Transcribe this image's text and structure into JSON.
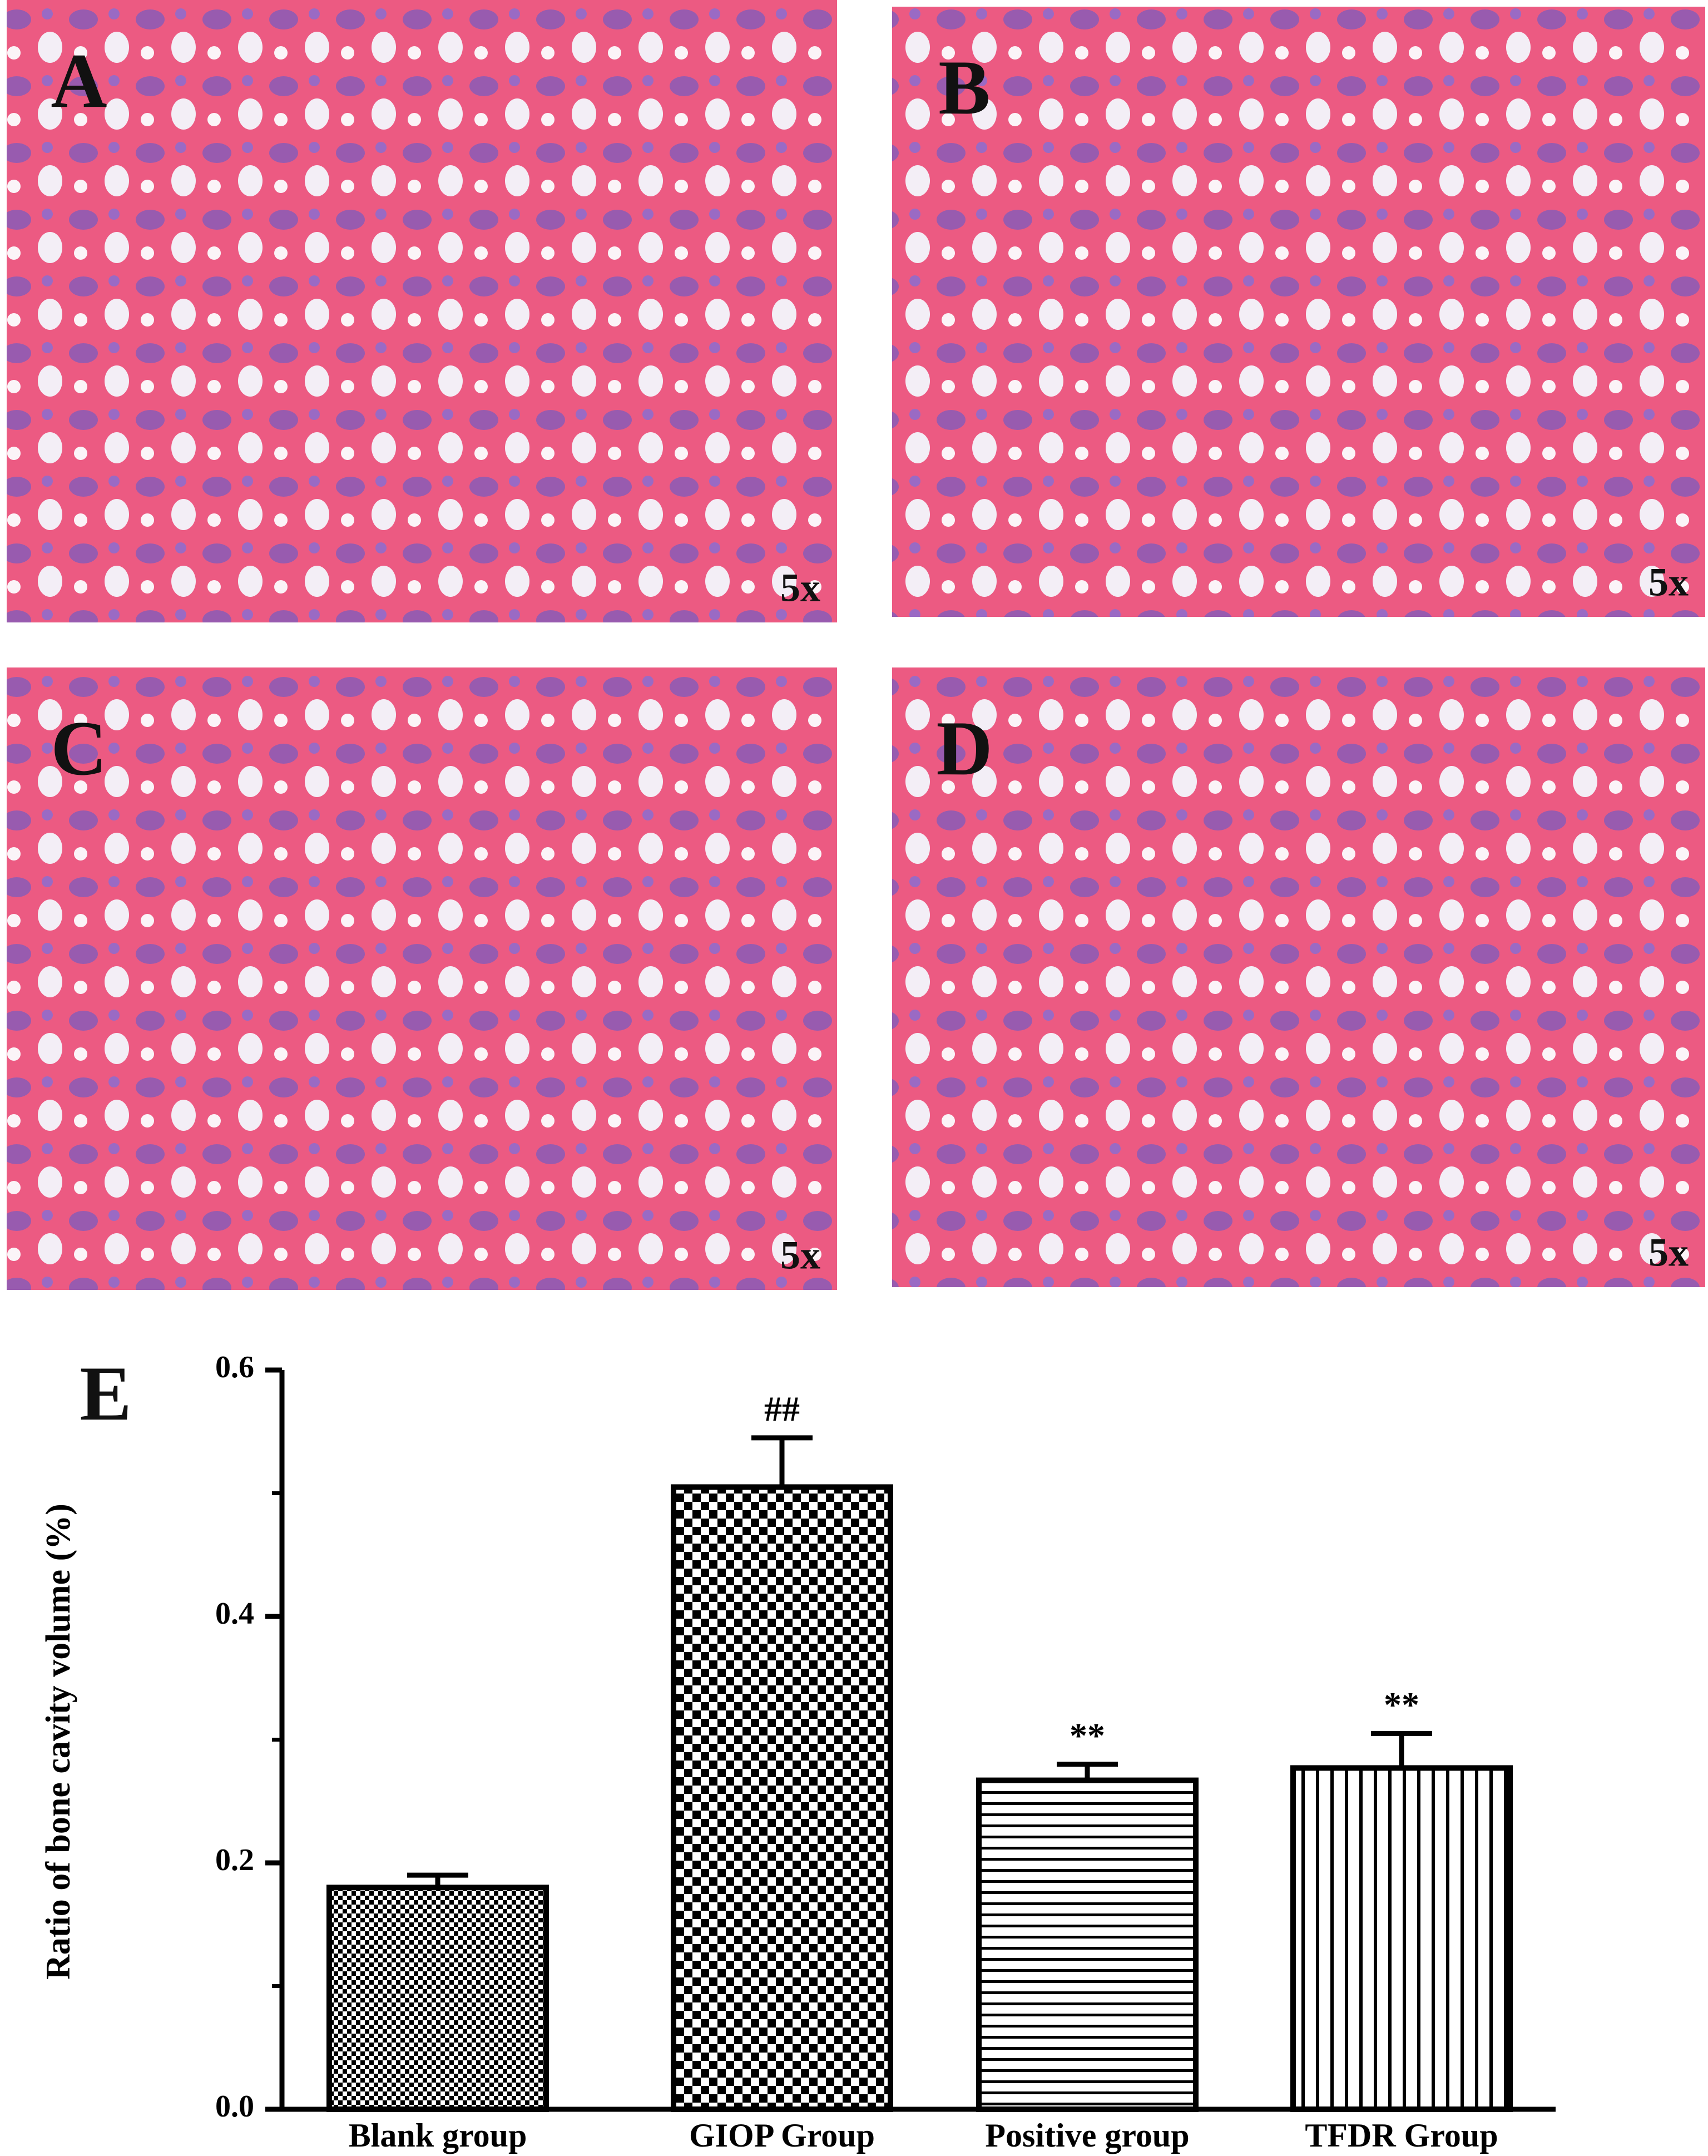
{
  "panels": [
    {
      "label": "A",
      "magnification": "5x"
    },
    {
      "label": "B",
      "magnification": "5x"
    },
    {
      "label": "C",
      "magnification": "5x"
    },
    {
      "label": "D",
      "magnification": "5x"
    }
  ],
  "chart_data": {
    "type": "bar",
    "panel_label": "E",
    "y_label": "Ratio of bone cavity volume (%)",
    "categories": [
      "Blank group",
      "GIOP Group",
      "Positive group",
      "TFDR Group"
    ],
    "values": [
      0.18,
      0.505,
      0.267,
      0.277
    ],
    "errors": [
      0.01,
      0.04,
      0.013,
      0.028
    ],
    "significance": [
      null,
      "##",
      "**",
      "**"
    ],
    "color": "#000000",
    "ylim": [
      0,
      0.6
    ],
    "yticks": [
      {
        "value": 0,
        "label": "0.0"
      },
      0.2,
      0.4,
      0.6
    ],
    "grid": false
  }
}
